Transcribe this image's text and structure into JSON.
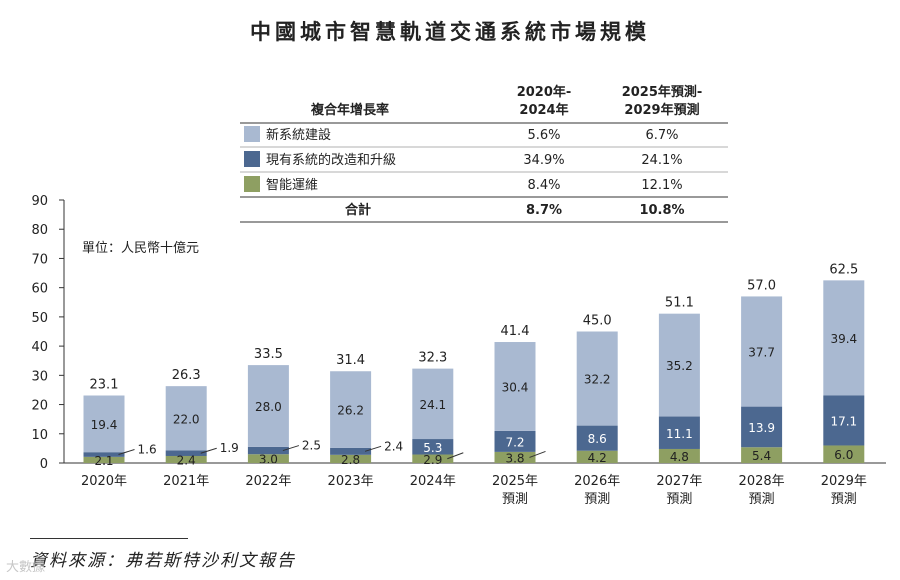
{
  "chart_data": {
    "type": "bar",
    "stacked": true,
    "title": "中國城市智慧軌道交通系統市場規模",
    "unit_label": "單位：人民幣十億元",
    "categories": [
      "2020年",
      "2021年",
      "2022年",
      "2023年",
      "2024年",
      "2025年",
      "2026年",
      "2027年",
      "2028年",
      "2029年"
    ],
    "category_sublabels": [
      "",
      "",
      "",
      "",
      "",
      "預測",
      "預測",
      "預測",
      "預測",
      "預測"
    ],
    "series": [
      {
        "name": "智能運維",
        "color": "#8e9f62",
        "values": [
          2.1,
          2.4,
          3.0,
          2.8,
          2.9,
          3.8,
          4.2,
          4.8,
          5.4,
          6.0
        ]
      },
      {
        "name": "現有系統的改造和升級",
        "color": "#4c6890",
        "values": [
          1.6,
          1.9,
          2.5,
          2.4,
          5.3,
          7.2,
          8.6,
          11.1,
          13.9,
          17.1
        ]
      },
      {
        "name": "新系統建設",
        "color": "#a9b9d1",
        "values": [
          19.4,
          22.0,
          28.0,
          26.2,
          24.1,
          30.4,
          32.2,
          35.2,
          37.7,
          39.4
        ]
      }
    ],
    "totals": [
      23.1,
      26.3,
      33.5,
      31.4,
      32.3,
      41.4,
      45.0,
      51.1,
      57.0,
      62.5
    ],
    "ylim": [
      0,
      90
    ],
    "yticks": [
      0,
      10,
      20,
      30,
      40,
      50,
      60,
      70,
      80,
      90
    ],
    "grid": false,
    "legend_placement": "top-right table"
  },
  "cagr_table": {
    "header_label": "複合年增長率",
    "col1_header_line1": "2020年-",
    "col1_header_line2": "2024年",
    "col2_header_line1": "2025年預測-",
    "col2_header_line2": "2029年預測",
    "rows": [
      {
        "name": "新系統建設",
        "color": "#a9b9d1",
        "cagr_2020_2024": "5.6%",
        "cagr_2025_2029": "6.7%"
      },
      {
        "name": "現有系統的改造和升級",
        "color": "#4c6890",
        "cagr_2020_2024": "34.9%",
        "cagr_2025_2029": "24.1%"
      },
      {
        "name": "智能運維",
        "color": "#8e9f62",
        "cagr_2020_2024": "8.4%",
        "cagr_2025_2029": "12.1%"
      }
    ],
    "total_label": "合計",
    "total_2020_2024": "8.7%",
    "total_2025_2029": "10.8%"
  },
  "source": "資料來源：弗若斯特沙利文報告",
  "watermark": "大數據"
}
